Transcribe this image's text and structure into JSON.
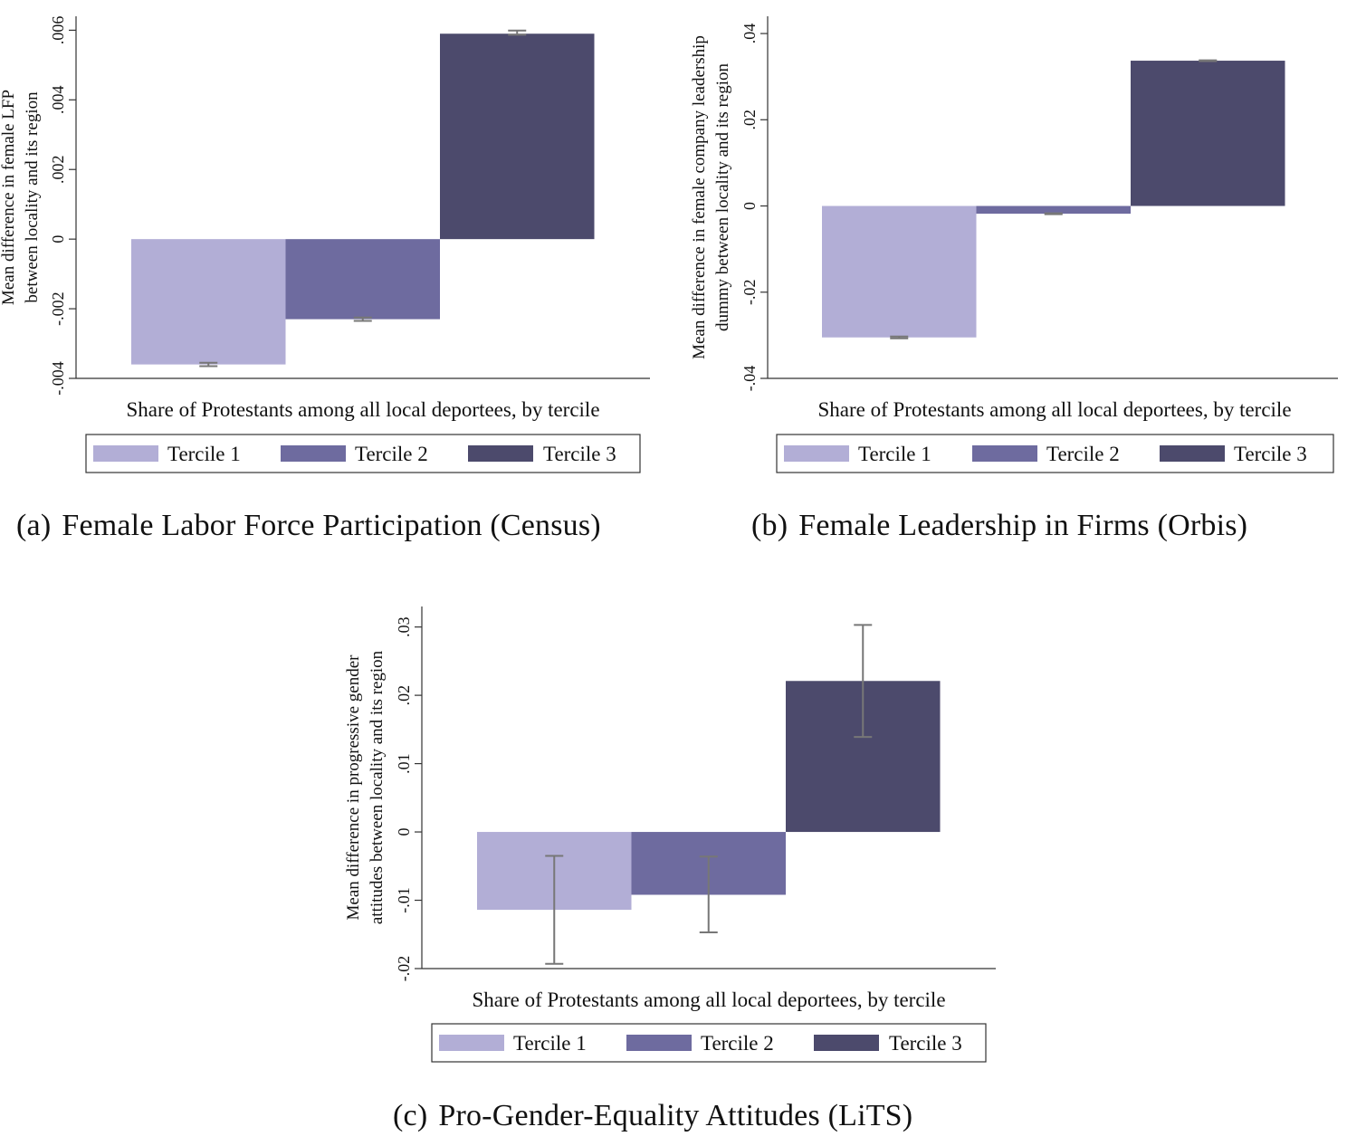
{
  "colors": {
    "tercile1": "#b2aed6",
    "tercile2": "#6e6b9f",
    "tercile3": "#4c4a6c",
    "error_bar": "#777777",
    "axis": "#333333",
    "background": "#ffffff"
  },
  "chart_data": [
    {
      "type": "bar",
      "panel_tag": "(a)",
      "title": "Female Labor Force Participation (Census)",
      "xlabel": "Share of Protestants among all local deportees, by tercile",
      "ylabel_lines": [
        "Mean difference in female LFP",
        "between locality and its region"
      ],
      "ylim": [
        -0.004,
        0.0064
      ],
      "yticks": [
        -0.004,
        -0.002,
        0,
        0.002,
        0.004,
        0.006
      ],
      "ytick_labels": [
        "-.004",
        "-.002",
        "0",
        ".002",
        ".004",
        ".006"
      ],
      "categories": [
        "Tercile 1",
        "Tercile 2",
        "Tercile 3"
      ],
      "values": [
        -0.0036,
        -0.0023,
        0.0059
      ],
      "error_low": [
        -0.00365,
        -0.00235,
        0.00587
      ],
      "error_high": [
        -0.00355,
        -0.00225,
        0.00599
      ],
      "legend": [
        "Tercile 1",
        "Tercile 2",
        "Tercile 3"
      ],
      "legend_position": "bottom",
      "grid": false
    },
    {
      "type": "bar",
      "panel_tag": "(b)",
      "title": "Female Leadership in Firms (Orbis)",
      "xlabel": "Share of Protestants among all local deportees, by tercile",
      "ylabel_lines": [
        "Mean difference in female company leadership",
        "dummy between locality and its region"
      ],
      "ylim": [
        -0.04,
        0.044
      ],
      "yticks": [
        -0.04,
        -0.02,
        0,
        0.02,
        0.04
      ],
      "ytick_labels": [
        "-.04",
        "-.02",
        "0",
        ".02",
        ".04"
      ],
      "categories": [
        "Tercile 1",
        "Tercile 2",
        "Tercile 3"
      ],
      "values": [
        -0.0305,
        -0.0018,
        0.0337
      ],
      "error_low": [
        -0.0307,
        -0.0019,
        0.0336
      ],
      "error_high": [
        -0.0303,
        -0.0017,
        0.0338
      ],
      "legend": [
        "Tercile 1",
        "Tercile 2",
        "Tercile 3"
      ],
      "legend_position": "bottom",
      "grid": false
    },
    {
      "type": "bar",
      "panel_tag": "(c)",
      "title": "Pro-Gender-Equality Attitudes (LiTS)",
      "xlabel": "Share of Protestants among all local deportees, by tercile",
      "ylabel_lines": [
        "Mean difference in progressive gender",
        "attitudes between locality and its region"
      ],
      "ylim": [
        -0.02,
        0.033
      ],
      "yticks": [
        -0.02,
        -0.01,
        0,
        0.01,
        0.02,
        0.03
      ],
      "ytick_labels": [
        "-.02",
        "-.01",
        "0",
        ".01",
        ".02",
        ".03"
      ],
      "categories": [
        "Tercile 1",
        "Tercile 2",
        "Tercile 3"
      ],
      "values": [
        -0.0114,
        -0.0092,
        0.0221
      ],
      "error_low": [
        -0.0193,
        -0.0147,
        0.0139
      ],
      "error_high": [
        -0.0035,
        -0.0036,
        0.0303
      ],
      "legend": [
        "Tercile 1",
        "Tercile 2",
        "Tercile 3"
      ],
      "legend_position": "bottom",
      "grid": false
    }
  ]
}
